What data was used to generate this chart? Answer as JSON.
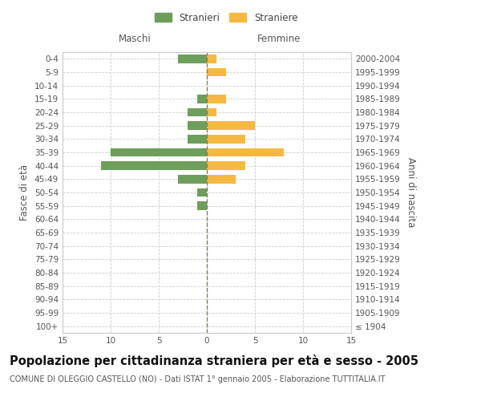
{
  "age_groups": [
    "100+",
    "95-99",
    "90-94",
    "85-89",
    "80-84",
    "75-79",
    "70-74",
    "65-69",
    "60-64",
    "55-59",
    "50-54",
    "45-49",
    "40-44",
    "35-39",
    "30-34",
    "25-29",
    "20-24",
    "15-19",
    "10-14",
    "5-9",
    "0-4"
  ],
  "birth_years": [
    "≤ 1904",
    "1905-1909",
    "1910-1914",
    "1915-1919",
    "1920-1924",
    "1925-1929",
    "1930-1934",
    "1935-1939",
    "1940-1944",
    "1945-1949",
    "1950-1954",
    "1955-1959",
    "1960-1964",
    "1965-1969",
    "1970-1974",
    "1975-1979",
    "1980-1984",
    "1985-1989",
    "1990-1994",
    "1995-1999",
    "2000-2004"
  ],
  "maschi": [
    0,
    0,
    0,
    0,
    0,
    0,
    0,
    0,
    0,
    1,
    1,
    3,
    11,
    10,
    2,
    2,
    2,
    1,
    0,
    0,
    3
  ],
  "femmine": [
    0,
    0,
    0,
    0,
    0,
    0,
    0,
    0,
    0,
    0,
    0,
    3,
    4,
    8,
    4,
    5,
    1,
    2,
    0,
    2,
    1
  ],
  "male_color": "#6d9e5a",
  "female_color": "#f5b942",
  "xlim": 15,
  "title": "Popolazione per cittadinanza straniera per età e sesso - 2005",
  "subtitle": "COMUNE DI OLEGGIO CASTELLO (NO) - Dati ISTAT 1° gennaio 2005 - Elaborazione TUTTITALIA.IT",
  "xlabel_left": "Maschi",
  "xlabel_right": "Femmine",
  "ylabel_left": "Fasce di età",
  "ylabel_right": "Anni di nascita",
  "legend_stranieri": "Stranieri",
  "legend_straniere": "Straniere",
  "bg_color": "#ffffff",
  "grid_color": "#cccccc",
  "center_line_color": "#808060",
  "title_fontsize": 10.5,
  "subtitle_fontsize": 7.0,
  "tick_fontsize": 7.5,
  "label_fontsize": 8.5
}
